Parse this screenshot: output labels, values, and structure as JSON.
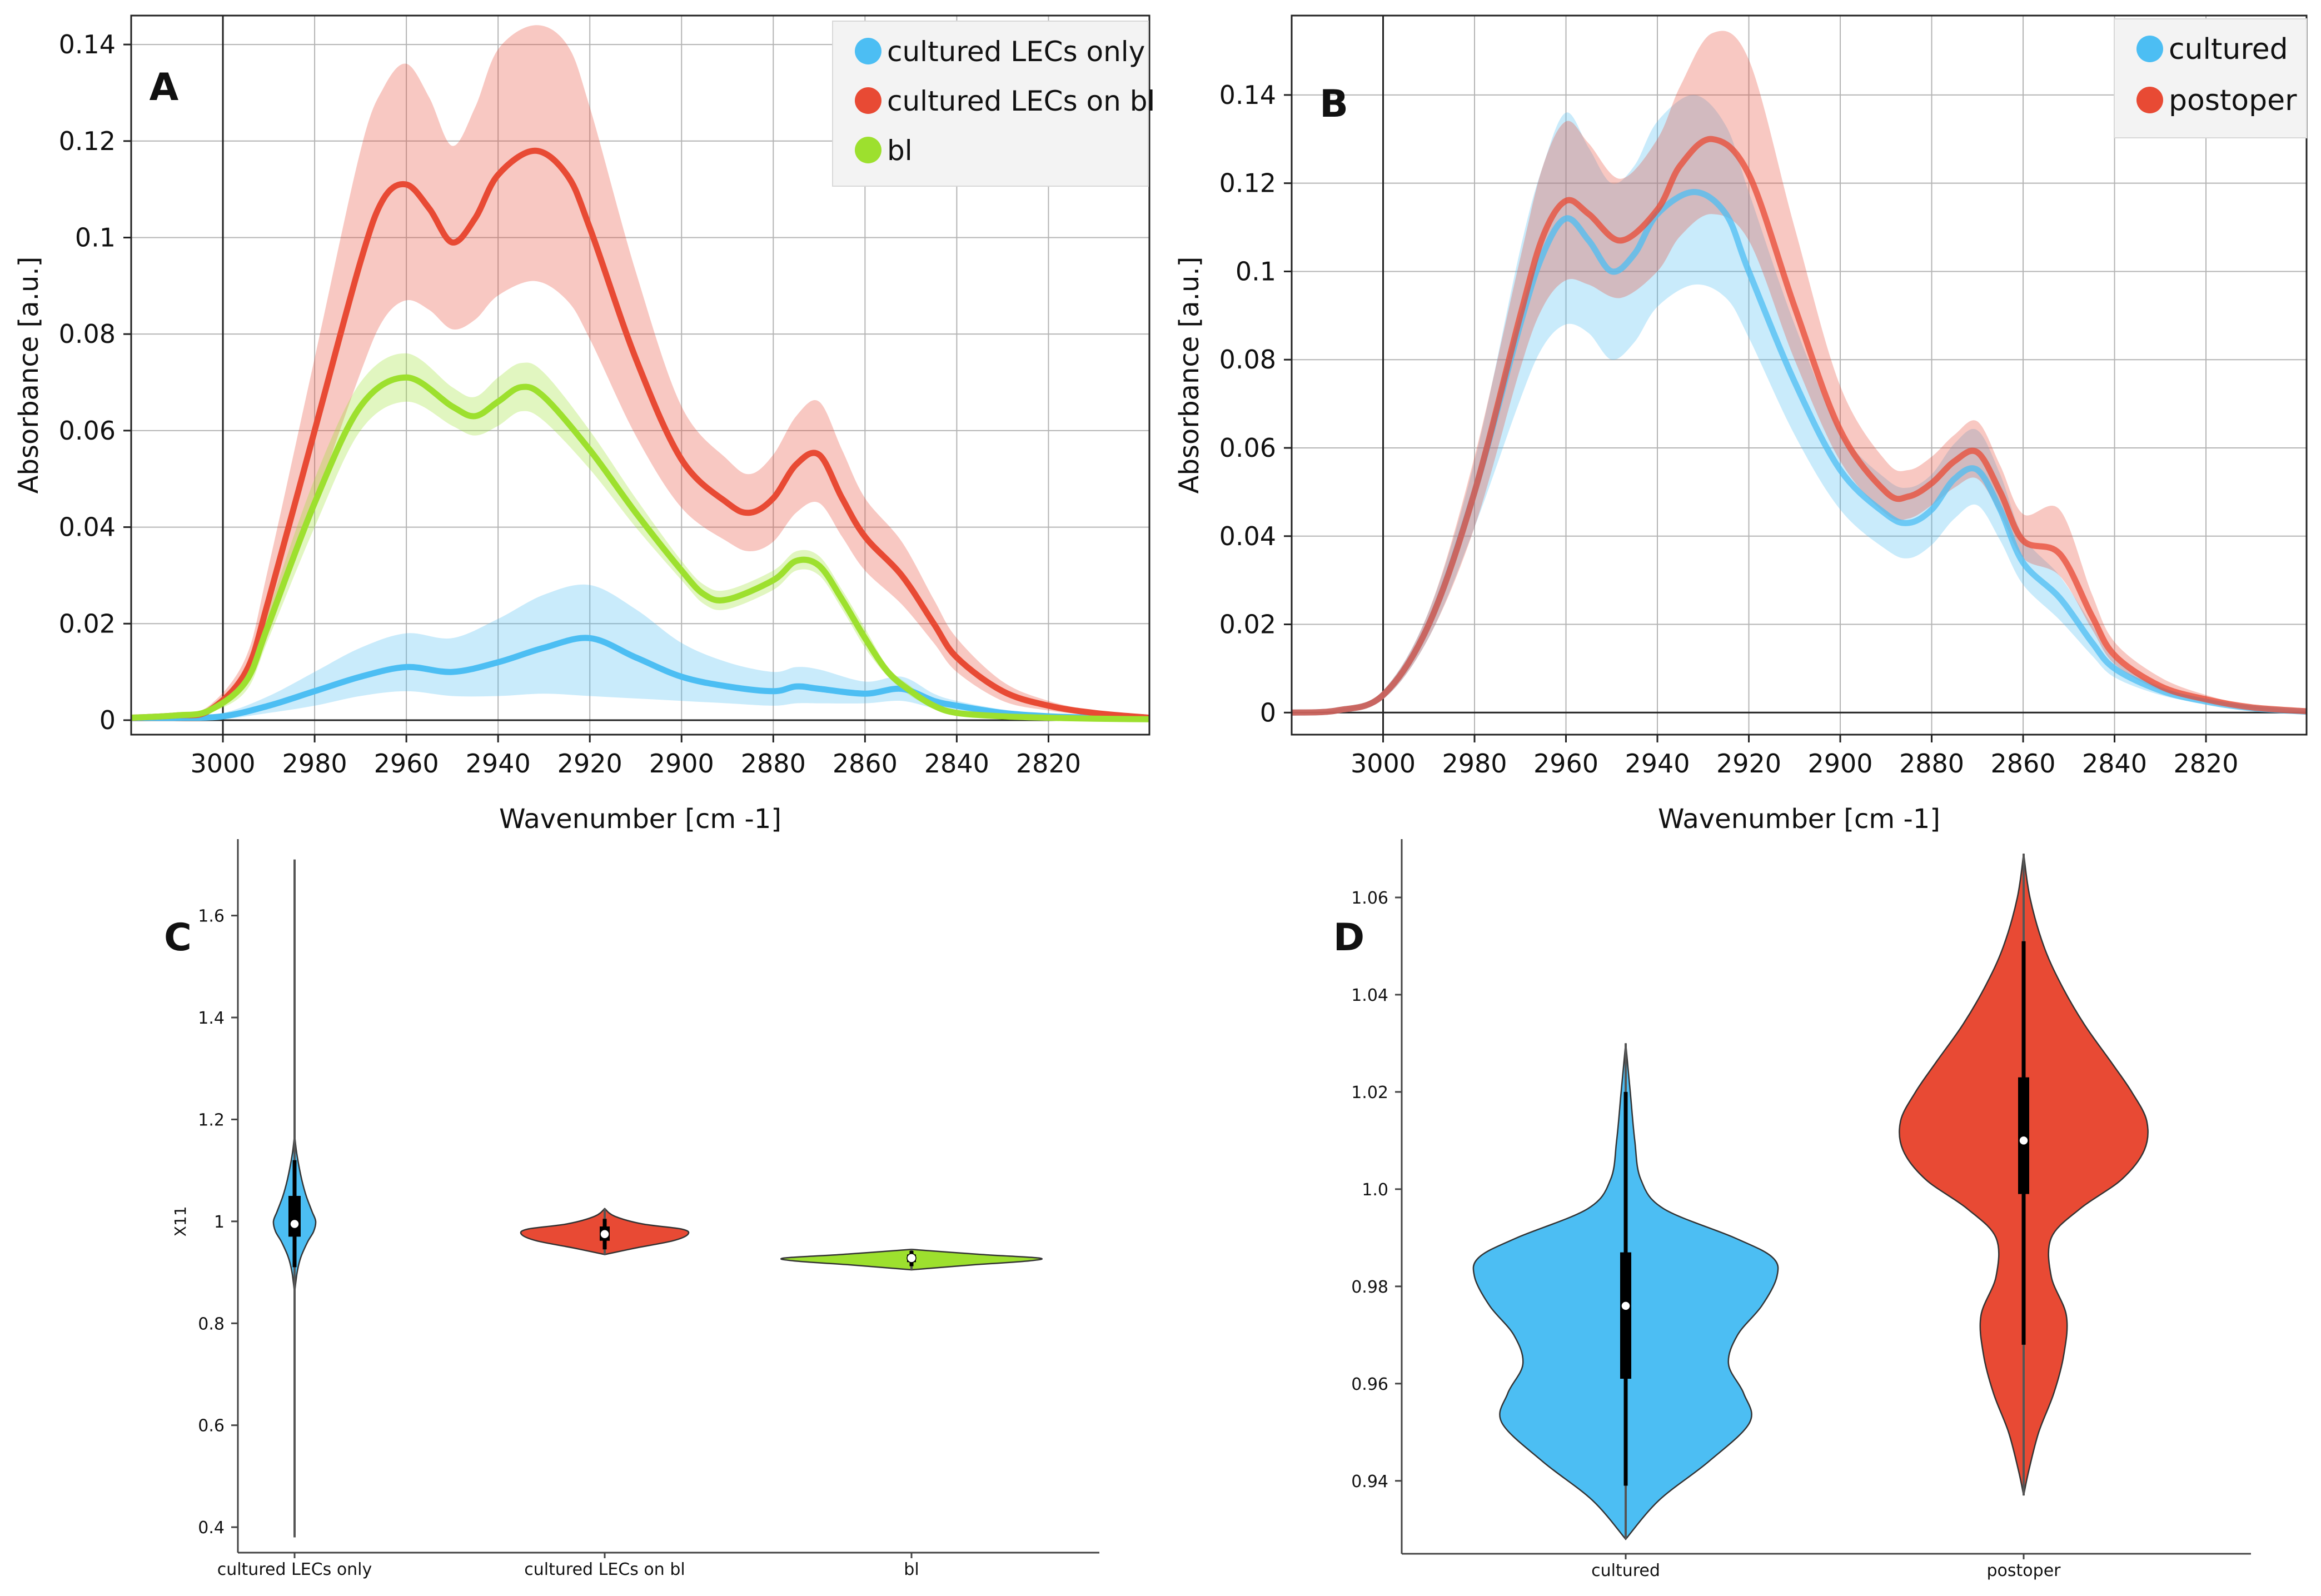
{
  "figure": {
    "colors": {
      "blue": "#4cbef3",
      "red": "#e84a34",
      "green": "#9de02e",
      "grid": "#b4b4b4",
      "axis": "#444444"
    }
  },
  "chart_data": [
    {
      "id": "A",
      "type": "line",
      "panel_label": "A",
      "title": "",
      "xlabel": "Wavenumber [cm -1]",
      "ylabel": "Absorbance [a.u.]",
      "xlim": [
        3020,
        2798
      ],
      "ylim": [
        -0.003,
        0.146
      ],
      "x_ticks": [
        3000,
        2980,
        2960,
        2940,
        2920,
        2900,
        2880,
        2860,
        2840,
        2820
      ],
      "x_tick_labels": [
        "3000",
        "2980",
        "2960",
        "2940",
        "2920",
        "2900",
        "2880",
        "2860",
        "2840",
        "2820"
      ],
      "y_ticks": [
        0,
        0.02,
        0.04,
        0.06,
        0.08,
        0.1,
        0.12,
        0.14
      ],
      "y_tick_labels": [
        "0",
        "0.02",
        "0.04",
        "0.06",
        "0.08",
        "0.1",
        "0.12",
        "0.14"
      ],
      "grid": true,
      "legend_position": "top-right",
      "series": [
        {
          "name": "cultured LECs only",
          "color_key": "blue",
          "x": [
            3020,
            3010,
            3000,
            2990,
            2980,
            2970,
            2960,
            2950,
            2940,
            2930,
            2920,
            2910,
            2900,
            2890,
            2880,
            2875,
            2870,
            2860,
            2852,
            2845,
            2840,
            2830,
            2820,
            2810,
            2798
          ],
          "mean": [
            0.0005,
            0.0005,
            0.0008,
            0.003,
            0.006,
            0.009,
            0.011,
            0.01,
            0.012,
            0.015,
            0.017,
            0.013,
            0.009,
            0.007,
            0.006,
            0.007,
            0.0065,
            0.0055,
            0.0065,
            0.004,
            0.003,
            0.0015,
            0.0008,
            0.0005,
            0.0003
          ],
          "lower": [
            0,
            0,
            0.0002,
            0.0015,
            0.003,
            0.005,
            0.006,
            0.005,
            0.005,
            0.0055,
            0.005,
            0.0045,
            0.004,
            0.0035,
            0.003,
            0.0035,
            0.0035,
            0.0035,
            0.004,
            0.0025,
            0.002,
            0.0008,
            0.0004,
            0.0002,
            0
          ],
          "upper": [
            0.001,
            0.001,
            0.0015,
            0.005,
            0.01,
            0.015,
            0.018,
            0.017,
            0.021,
            0.026,
            0.028,
            0.023,
            0.016,
            0.012,
            0.01,
            0.011,
            0.0105,
            0.008,
            0.009,
            0.0055,
            0.004,
            0.0022,
            0.0012,
            0.0008,
            0.0005
          ]
        },
        {
          "name": "cultured LECs on bl",
          "color_key": "red",
          "x": [
            3020,
            3010,
            3003,
            2995,
            2990,
            2980,
            2970,
            2965,
            2960,
            2955,
            2950,
            2945,
            2940,
            2932,
            2925,
            2920,
            2910,
            2900,
            2890,
            2885,
            2880,
            2875,
            2870,
            2865,
            2860,
            2852,
            2845,
            2840,
            2830,
            2820,
            2810,
            2798
          ],
          "mean": [
            0.0005,
            0.001,
            0.002,
            0.01,
            0.025,
            0.06,
            0.095,
            0.108,
            0.111,
            0.106,
            0.099,
            0.104,
            0.113,
            0.118,
            0.113,
            0.102,
            0.075,
            0.054,
            0.045,
            0.043,
            0.046,
            0.053,
            0.055,
            0.046,
            0.038,
            0.03,
            0.02,
            0.013,
            0.006,
            0.003,
            0.0015,
            0.0005
          ],
          "lower": [
            0,
            0.0005,
            0.0015,
            0.007,
            0.018,
            0.045,
            0.072,
            0.083,
            0.087,
            0.085,
            0.081,
            0.083,
            0.088,
            0.091,
            0.087,
            0.079,
            0.059,
            0.044,
            0.037,
            0.035,
            0.037,
            0.043,
            0.045,
            0.038,
            0.031,
            0.024,
            0.016,
            0.01,
            0.004,
            0.002,
            0.001,
            0.0002
          ],
          "upper": [
            0.001,
            0.0015,
            0.003,
            0.013,
            0.032,
            0.075,
            0.118,
            0.131,
            0.136,
            0.129,
            0.119,
            0.127,
            0.139,
            0.144,
            0.14,
            0.127,
            0.093,
            0.065,
            0.054,
            0.051,
            0.055,
            0.063,
            0.066,
            0.056,
            0.046,
            0.037,
            0.025,
            0.017,
            0.008,
            0.004,
            0.002,
            0.0008
          ]
        },
        {
          "name": "bl",
          "color_key": "green",
          "x": [
            3020,
            3010,
            3003,
            2995,
            2990,
            2980,
            2970,
            2960,
            2950,
            2945,
            2940,
            2935,
            2930,
            2920,
            2910,
            2900,
            2895,
            2890,
            2880,
            2875,
            2870,
            2865,
            2860,
            2855,
            2850,
            2845,
            2840,
            2830,
            2820,
            2810,
            2798
          ],
          "mean": [
            0.0005,
            0.001,
            0.002,
            0.008,
            0.02,
            0.045,
            0.065,
            0.071,
            0.065,
            0.063,
            0.066,
            0.069,
            0.067,
            0.056,
            0.043,
            0.031,
            0.026,
            0.025,
            0.029,
            0.033,
            0.032,
            0.025,
            0.017,
            0.01,
            0.006,
            0.003,
            0.0015,
            0.0008,
            0.0005,
            0.0003,
            0.0002
          ],
          "lower": [
            0,
            0.0005,
            0.0015,
            0.006,
            0.017,
            0.04,
            0.06,
            0.066,
            0.061,
            0.059,
            0.061,
            0.064,
            0.062,
            0.052,
            0.04,
            0.029,
            0.024,
            0.023,
            0.027,
            0.031,
            0.03,
            0.023,
            0.015,
            0.009,
            0.005,
            0.0025,
            0.001,
            0.0005,
            0.0003,
            0.0002,
            0.0001
          ],
          "upper": [
            0.001,
            0.0015,
            0.0025,
            0.01,
            0.023,
            0.05,
            0.07,
            0.076,
            0.069,
            0.067,
            0.071,
            0.074,
            0.072,
            0.06,
            0.046,
            0.033,
            0.028,
            0.027,
            0.031,
            0.035,
            0.034,
            0.027,
            0.019,
            0.011,
            0.007,
            0.0035,
            0.002,
            0.001,
            0.0007,
            0.0004,
            0.0003
          ]
        }
      ]
    },
    {
      "id": "B",
      "type": "line",
      "panel_label": "B",
      "title": "",
      "xlabel": "Wavenumber [cm -1]",
      "ylabel": "Absorbance [a.u.]",
      "xlim": [
        3020,
        2798
      ],
      "ylim": [
        -0.005,
        0.158
      ],
      "x_ticks": [
        3000,
        2980,
        2960,
        2940,
        2920,
        2900,
        2880,
        2860,
        2840,
        2820
      ],
      "x_tick_labels": [
        "3000",
        "2980",
        "2960",
        "2940",
        "2920",
        "2900",
        "2880",
        "2860",
        "2840",
        "2820"
      ],
      "y_ticks": [
        0,
        0.02,
        0.04,
        0.06,
        0.08,
        0.1,
        0.12,
        0.14
      ],
      "y_tick_labels": [
        "0",
        "0.02",
        "0.04",
        "0.06",
        "0.08",
        "0.1",
        "0.12",
        "0.14"
      ],
      "grid": true,
      "legend_position": "top-right",
      "series": [
        {
          "name": "cultured",
          "color_key": "blue",
          "x": [
            3020,
            3010,
            3000,
            2990,
            2980,
            2970,
            2965,
            2960,
            2955,
            2950,
            2945,
            2940,
            2932,
            2925,
            2920,
            2910,
            2900,
            2890,
            2885,
            2880,
            2875,
            2870,
            2865,
            2860,
            2852,
            2845,
            2840,
            2830,
            2820,
            2810,
            2798
          ],
          "mean": [
            0,
            0.0005,
            0.004,
            0.02,
            0.05,
            0.088,
            0.104,
            0.112,
            0.107,
            0.1,
            0.104,
            0.113,
            0.118,
            0.113,
            0.1,
            0.075,
            0.055,
            0.045,
            0.043,
            0.046,
            0.053,
            0.055,
            0.046,
            0.034,
            0.026,
            0.016,
            0.01,
            0.005,
            0.0025,
            0.001,
            0.0002
          ],
          "lower": [
            0,
            0.0003,
            0.003,
            0.017,
            0.042,
            0.071,
            0.083,
            0.088,
            0.086,
            0.08,
            0.084,
            0.092,
            0.097,
            0.094,
            0.085,
            0.063,
            0.046,
            0.037,
            0.035,
            0.038,
            0.044,
            0.047,
            0.039,
            0.029,
            0.021,
            0.013,
            0.008,
            0.004,
            0.002,
            0.0008,
            0.0001
          ],
          "upper": [
            0.0002,
            0.0008,
            0.005,
            0.023,
            0.057,
            0.105,
            0.124,
            0.136,
            0.128,
            0.12,
            0.124,
            0.134,
            0.14,
            0.133,
            0.118,
            0.088,
            0.064,
            0.053,
            0.051,
            0.054,
            0.061,
            0.064,
            0.054,
            0.04,
            0.031,
            0.02,
            0.012,
            0.006,
            0.003,
            0.0012,
            0.0003
          ]
        },
        {
          "name": "postoper",
          "color_key": "red",
          "x": [
            3020,
            3010,
            3000,
            2990,
            2980,
            2970,
            2965,
            2960,
            2955,
            2948,
            2940,
            2935,
            2928,
            2920,
            2910,
            2900,
            2890,
            2885,
            2880,
            2875,
            2870,
            2865,
            2860,
            2852,
            2845,
            2840,
            2830,
            2820,
            2810,
            2798
          ],
          "mean": [
            0,
            0.0005,
            0.004,
            0.02,
            0.05,
            0.09,
            0.108,
            0.116,
            0.113,
            0.107,
            0.114,
            0.124,
            0.13,
            0.122,
            0.092,
            0.064,
            0.05,
            0.049,
            0.052,
            0.057,
            0.059,
            0.05,
            0.039,
            0.036,
            0.022,
            0.013,
            0.006,
            0.003,
            0.0012,
            0.0003
          ],
          "lower": [
            0,
            0.0003,
            0.003,
            0.017,
            0.042,
            0.078,
            0.092,
            0.098,
            0.097,
            0.094,
            0.1,
            0.108,
            0.113,
            0.107,
            0.08,
            0.057,
            0.045,
            0.044,
            0.047,
            0.051,
            0.053,
            0.045,
            0.035,
            0.031,
            0.019,
            0.011,
            0.005,
            0.0025,
            0.001,
            0.0002
          ],
          "upper": [
            0.0002,
            0.0008,
            0.005,
            0.023,
            0.058,
            0.103,
            0.124,
            0.134,
            0.129,
            0.121,
            0.13,
            0.142,
            0.154,
            0.148,
            0.11,
            0.074,
            0.057,
            0.055,
            0.058,
            0.063,
            0.066,
            0.056,
            0.045,
            0.046,
            0.027,
            0.016,
            0.008,
            0.004,
            0.0016,
            0.0005
          ]
        }
      ]
    },
    {
      "id": "C",
      "type": "violin",
      "panel_label": "C",
      "title": "",
      "xlabel": "",
      "ylabel": "X11",
      "ylim": [
        0.35,
        1.75
      ],
      "y_ticks": [
        0.4,
        0.6,
        0.8,
        1.0,
        1.2,
        1.4,
        1.6
      ],
      "y_tick_labels": [
        "0.4",
        "0.6",
        "0.8",
        "1",
        "1.2",
        "1.4",
        "1.6"
      ],
      "categories": [
        "cultured LECs only",
        "cultured LECs on bl",
        "bl"
      ],
      "groups": [
        {
          "name": "cultured LECs only",
          "color_key": "blue",
          "min": 0.38,
          "max": 1.71,
          "q1": 0.97,
          "median": 0.995,
          "q3": 1.05,
          "whisker_low": 0.91,
          "whisker_high": 1.12,
          "profile_y": [
            0.86,
            0.9,
            0.93,
            0.96,
            0.98,
            1.0,
            1.02,
            1.05,
            1.08,
            1.11,
            1.14,
            1.17
          ],
          "profile_w": [
            0.0,
            0.12,
            0.3,
            0.62,
            0.9,
            1.0,
            0.82,
            0.55,
            0.35,
            0.2,
            0.08,
            0.0
          ]
        },
        {
          "name": "cultured LECs on bl",
          "color_key": "red",
          "min": 0.935,
          "max": 1.025,
          "q1": 0.962,
          "median": 0.975,
          "q3": 0.99,
          "whisker_low": 0.945,
          "whisker_high": 1.005,
          "profile_y": [
            0.935,
            0.948,
            0.962,
            0.975,
            0.985,
            0.995,
            1.01,
            1.025
          ],
          "profile_w": [
            0.0,
            0.38,
            0.82,
            1.0,
            0.92,
            0.45,
            0.12,
            0.0
          ]
        },
        {
          "name": "bl",
          "color_key": "green",
          "min": 0.905,
          "max": 0.945,
          "q1": 0.92,
          "median": 0.928,
          "q3": 0.935,
          "whisker_low": 0.912,
          "whisker_high": 0.942,
          "profile_y": [
            0.905,
            0.915,
            0.922,
            0.928,
            0.935,
            0.945
          ],
          "profile_w": [
            0.0,
            0.5,
            0.9,
            1.0,
            0.55,
            0.0
          ]
        }
      ]
    },
    {
      "id": "D",
      "type": "violin",
      "panel_label": "D",
      "title": "",
      "xlabel": "",
      "ylabel": "",
      "ylim": [
        0.925,
        1.072
      ],
      "y_ticks": [
        0.94,
        0.96,
        0.98,
        1.0,
        1.02,
        1.04,
        1.06
      ],
      "y_tick_labels": [
        "0.94",
        "0.96",
        "0.98",
        "1.0",
        "1.02",
        "1.04",
        "1.06"
      ],
      "categories": [
        "cultured",
        "postoper"
      ],
      "groups": [
        {
          "name": "cultured",
          "color_key": "blue",
          "min": 0.928,
          "max": 1.03,
          "q1": 0.961,
          "median": 0.976,
          "q3": 0.987,
          "whisker_low": 0.939,
          "whisker_high": 1.02,
          "profile_y": [
            0.928,
            0.936,
            0.944,
            0.952,
            0.958,
            0.964,
            0.97,
            0.976,
            0.982,
            0.986,
            0.99,
            0.996,
            1.002,
            1.01,
            1.02,
            1.03
          ],
          "profile_w": [
            0.0,
            0.22,
            0.55,
            0.82,
            0.78,
            0.68,
            0.74,
            0.9,
            1.0,
            0.97,
            0.72,
            0.25,
            0.1,
            0.06,
            0.03,
            0.0
          ]
        },
        {
          "name": "postoper",
          "color_key": "red",
          "min": 0.937,
          "max": 1.069,
          "q1": 0.999,
          "median": 1.01,
          "q3": 1.023,
          "whisker_low": 0.968,
          "whisker_high": 1.051,
          "profile_y": [
            0.937,
            0.942,
            0.95,
            0.958,
            0.966,
            0.974,
            0.982,
            0.99,
            0.996,
            1.002,
            1.008,
            1.014,
            1.02,
            1.026,
            1.034,
            1.042,
            1.05,
            1.06,
            1.069
          ],
          "profile_w": [
            0.0,
            0.04,
            0.12,
            0.24,
            0.32,
            0.34,
            0.22,
            0.22,
            0.45,
            0.78,
            0.96,
            0.98,
            0.86,
            0.7,
            0.48,
            0.3,
            0.16,
            0.05,
            0.0
          ]
        }
      ]
    }
  ]
}
